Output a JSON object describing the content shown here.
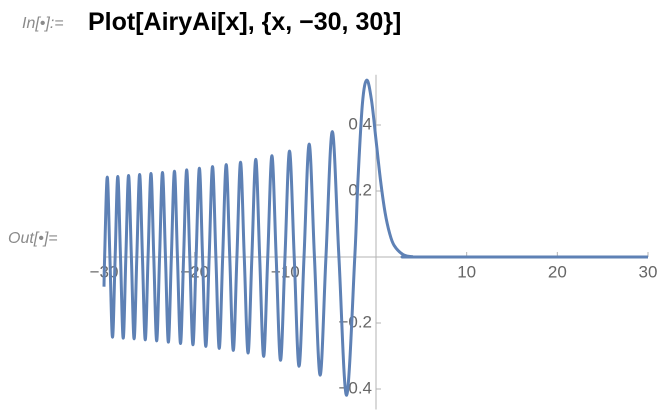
{
  "input": {
    "label": "In[•]:=",
    "code": "Plot[AiryAi[x], {x, −30, 30}]"
  },
  "output_label": "Out[•]=",
  "chart_data": {
    "type": "line",
    "color": "#5e81b5",
    "x": [
      -30,
      -29.93,
      -29.64,
      -29.35,
      -29.06,
      -28.77,
      -28.48,
      -28.18,
      -27.88,
      -27.59,
      -27.29,
      -26.98,
      -26.68,
      -26.38,
      -26.07,
      -25.76,
      -25.45,
      -25.14,
      -24.82,
      -24.51,
      -24.19,
      -23.87,
      -23.55,
      -23.22,
      -22.9,
      -22.57,
      -22.23,
      -21.9,
      -21.56,
      -21.22,
      -20.88,
      -20.54,
      -20.19,
      -19.84,
      -19.48,
      -19.13,
      -18.77,
      -18.4,
      -18.03,
      -17.66,
      -17.29,
      -16.91,
      -16.52,
      -16.13,
      -15.74,
      -15.34,
      -14.94,
      -14.53,
      -14.11,
      -13.69,
      -13.26,
      -12.83,
      -12.39,
      -11.94,
      -11.48,
      -11.01,
      -10.53,
      -10.04,
      -9.54,
      -9.02,
      -8.49,
      -7.94,
      -7.37,
      -6.79,
      -6.16,
      -5.52,
      -4.82,
      -4.09,
      -3.25,
      -2.34,
      -2,
      -1.5,
      -1.02,
      -0.5,
      0,
      0.5,
      1,
      1.5,
      2,
      3,
      4,
      5,
      30
    ],
    "values": [
      -0.09,
      0,
      0.242,
      0,
      -0.243,
      0,
      0.244,
      0,
      -0.246,
      0,
      0.247,
      0,
      -0.248,
      0,
      0.25,
      0,
      -0.251,
      0,
      0.253,
      0,
      -0.254,
      0,
      0.256,
      0,
      -0.258,
      0,
      0.26,
      0,
      -0.262,
      0,
      0.264,
      0,
      -0.266,
      0,
      0.269,
      0,
      -0.271,
      0,
      0.274,
      0,
      -0.277,
      0,
      0.28,
      0,
      -0.283,
      0,
      0.287,
      0,
      -0.291,
      0,
      0.296,
      0,
      -0.301,
      0,
      0.307,
      0,
      -0.313,
      0,
      0.321,
      0,
      -0.331,
      0,
      0.342,
      0,
      -0.358,
      0,
      0.38,
      0,
      -0.419,
      0,
      0.227,
      0.464,
      0.536,
      0.476,
      0.355,
      0.232,
      0.135,
      0.072,
      0.035,
      0.007,
      0.001,
      0,
      0
    ],
    "xlim": [
      -30,
      30
    ],
    "ylim": [
      -0.45,
      0.54
    ],
    "xticks": [
      {
        "value": -30,
        "label": "−30"
      },
      {
        "value": -20,
        "label": "−20"
      },
      {
        "value": -10,
        "label": "−10"
      },
      10,
      20,
      30
    ],
    "yticks": [
      {
        "value": -0.4,
        "label": "−0.4"
      },
      {
        "value": -0.2,
        "label": "−0.2"
      },
      0.2,
      0.4
    ]
  }
}
